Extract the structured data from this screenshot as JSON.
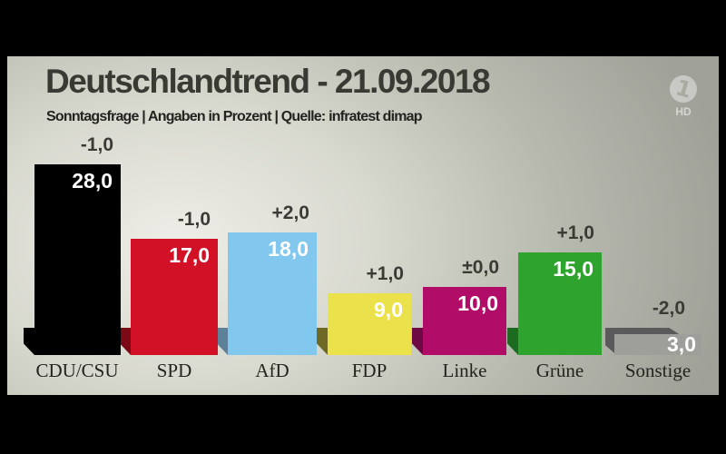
{
  "header": {
    "title": "Deutschlandtrend - 21.09.2018",
    "subtitle": "Sonntagsfrage | Angaben in Prozent | Quelle: infratest dimap"
  },
  "watermark": {
    "logo_glyph": "1",
    "badge": "HD"
  },
  "chart_data": {
    "type": "bar",
    "title": "Deutschlandtrend - 21.09.2018",
    "subtitle": "Sonntagsfrage | Angaben in Prozent | Quelle: infratest dimap",
    "unit": "Prozent",
    "source": "infratest dimap",
    "categories": [
      "CDU/CSU",
      "SPD",
      "AfD",
      "FDP",
      "Linke",
      "Grüne",
      "Sonstige"
    ],
    "values": [
      28.0,
      17.0,
      18.0,
      9.0,
      10.0,
      15.0,
      3.0
    ],
    "value_labels": [
      "28,0",
      "17,0",
      "18,0",
      "9,0",
      "10,0",
      "15,0",
      "3,0"
    ],
    "change_labels": [
      "-1,0",
      "-1,0",
      "+2,0",
      "+1,0",
      "±0,0",
      "+1,0",
      "-2,0"
    ],
    "bar_colors": [
      "#000000",
      "#d21127",
      "#82c7ee",
      "#ebe14a",
      "#b10d68",
      "#2ea32e",
      "#9e9e9b"
    ],
    "shadow_colors": [
      "#000000",
      "#7c0a16",
      "#5e8099",
      "#6e6a26",
      "#6d0a44",
      "#1c6b1e",
      "#5a5a5a"
    ],
    "ylim": [
      0,
      30
    ],
    "grid": false,
    "legend": "none"
  },
  "style": {
    "letterbox": "#000000",
    "background_center": "#eeede7",
    "background_edge": "#9fa198",
    "title_text": "#3a3a35",
    "subtitle_text": "#232320",
    "value_text": "#ffffff",
    "change_text": "#3b3b35",
    "category_text": "#24241f"
  }
}
